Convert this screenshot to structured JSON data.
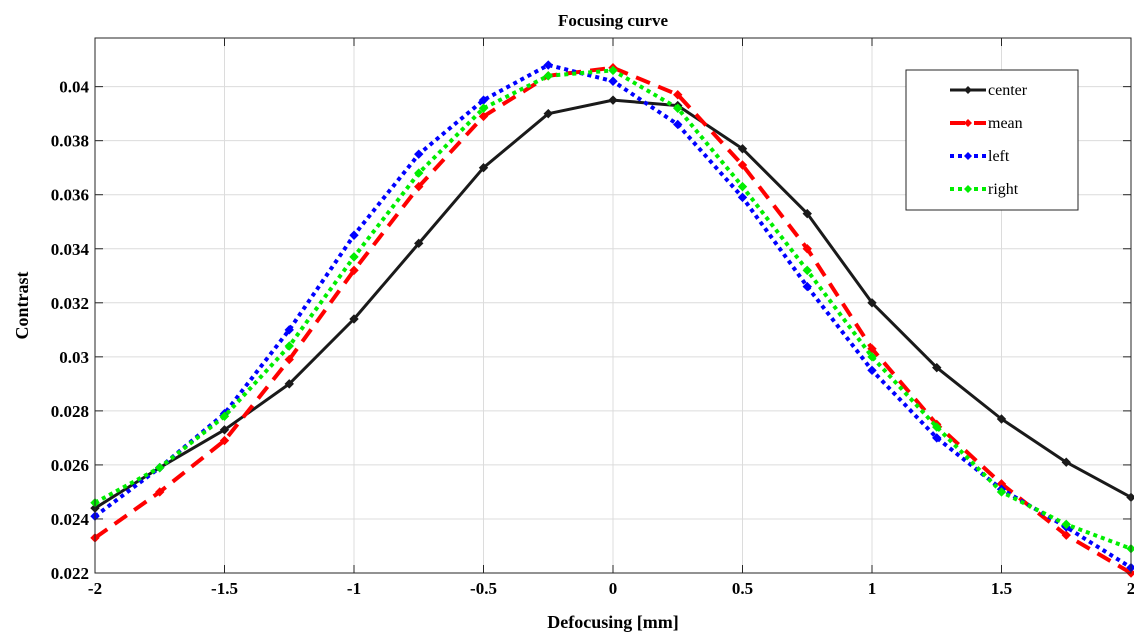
{
  "chart_data": {
    "type": "line",
    "title": "Focusing curve",
    "xlabel": "Defocusing [mm]",
    "ylabel": "Contrast",
    "xlim": [
      -2,
      2
    ],
    "ylim": [
      0.022,
      0.0418
    ],
    "x": [
      -2,
      -1.75,
      -1.5,
      -1.25,
      -1,
      -0.75,
      -0.5,
      -0.25,
      0,
      0.25,
      0.5,
      0.75,
      1,
      1.25,
      1.5,
      1.75,
      2
    ],
    "xticks": [
      -2,
      -1.5,
      -1,
      -0.5,
      0,
      0.5,
      1,
      1.5,
      2
    ],
    "xtick_labels": [
      "-2",
      "-1.5",
      "-1",
      "-0.5",
      "0",
      "0.5",
      "1",
      "1.5",
      "2"
    ],
    "yticks": [
      0.022,
      0.024,
      0.026,
      0.028,
      0.03,
      0.032,
      0.034,
      0.036,
      0.038,
      0.04
    ],
    "ytick_labels": [
      "0.022",
      "0.024",
      "0.026",
      "0.028",
      "0.03",
      "0.032",
      "0.034",
      "0.036",
      "0.038",
      "0.04"
    ],
    "grid": true,
    "legend_position": "top-right",
    "series": [
      {
        "name": "center",
        "color": "#1a1a1a",
        "dash": "solid",
        "values": [
          0.0244,
          0.0259,
          0.0273,
          0.029,
          0.0314,
          0.0342,
          0.037,
          0.039,
          0.0395,
          0.0393,
          0.0377,
          0.0353,
          0.032,
          0.0296,
          0.0277,
          0.0261,
          0.0248
        ]
      },
      {
        "name": "mean",
        "color": "#ff0000",
        "dash": "dashed",
        "values": [
          0.0233,
          0.025,
          0.0269,
          0.0299,
          0.0332,
          0.0363,
          0.0389,
          0.0404,
          0.0407,
          0.0397,
          0.0371,
          0.034,
          0.0303,
          0.0275,
          0.0253,
          0.0234,
          0.022
        ]
      },
      {
        "name": "left",
        "color": "#0000ff",
        "dash": "dotted",
        "values": [
          0.0241,
          0.0259,
          0.0279,
          0.031,
          0.0345,
          0.0375,
          0.0395,
          0.0408,
          0.0402,
          0.0386,
          0.0359,
          0.0326,
          0.0295,
          0.027,
          0.0251,
          0.0237,
          0.0222
        ]
      },
      {
        "name": "right",
        "color": "#00ee00",
        "dash": "dotted",
        "values": [
          0.0246,
          0.0259,
          0.0278,
          0.0304,
          0.0337,
          0.0368,
          0.0392,
          0.0404,
          0.0406,
          0.0392,
          0.0363,
          0.0332,
          0.03,
          0.0274,
          0.025,
          0.0238,
          0.0229
        ]
      }
    ]
  }
}
